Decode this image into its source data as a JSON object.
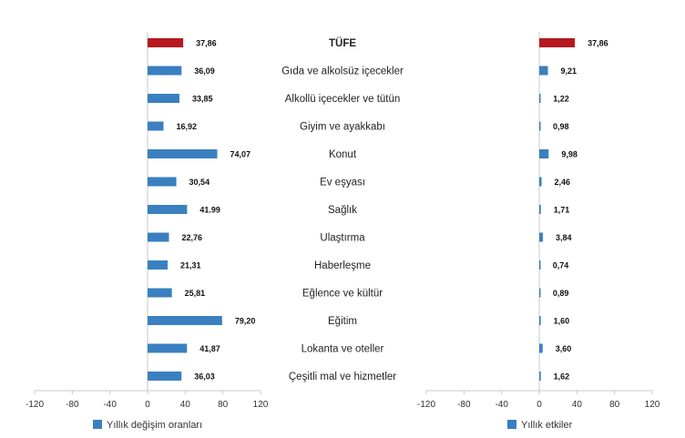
{
  "chart_data": {
    "type": "bar",
    "orientation": "horizontal",
    "categories": [
      "TÜFE",
      "Gıda ve alkolsüz içecekler",
      "Alkollü içecekler ve tütün",
      "Giyim ve ayakkabı",
      "Konut",
      "Ev eşyası",
      "Sağlık",
      "Ulaştırma",
      "Haberleşme",
      "Eğlence ve kültür",
      "Eğitim",
      "Lokanta ve oteller",
      "Çeşitli mal ve hizmetler"
    ],
    "highlight_index": 0,
    "colors": {
      "bar": "#3a80c0",
      "highlight": "#b5191f",
      "axis": "#c8c8c8"
    },
    "panels": [
      {
        "name": "Yıllık değişim oranları",
        "values": [
          37.86,
          36.09,
          33.85,
          16.92,
          74.07,
          30.54,
          41.99,
          22.76,
          21.31,
          25.81,
          79.2,
          41.87,
          36.03
        ],
        "labels": [
          "37,86",
          "36,09",
          "33,85",
          "16,92",
          "74,07",
          "30,54",
          "41.99",
          "22,76",
          "21,31",
          "25,81",
          "79,20",
          "41,87",
          "36,03"
        ],
        "xlim": [
          -120,
          120
        ],
        "ticks": [
          "-120",
          "-80",
          "-40",
          "0",
          "40",
          "80",
          "120"
        ]
      },
      {
        "name": "Yıllık etkiler",
        "values": [
          37.86,
          9.21,
          1.22,
          0.98,
          9.98,
          2.46,
          1.71,
          3.84,
          0.74,
          0.89,
          1.6,
          3.6,
          1.62
        ],
        "labels": [
          "37,86",
          "9,21",
          "1,22",
          "0,98",
          "9,98",
          "2,46",
          "1,71",
          "3,84",
          "0,74",
          "0,89",
          "1,60",
          "3,60",
          "1,62"
        ],
        "xlim": [
          -120,
          120
        ],
        "ticks": [
          "-120",
          "-80",
          "-40",
          "0",
          "40",
          "80",
          "120"
        ]
      }
    ],
    "legend_placement": "bottom",
    "grid": false
  }
}
